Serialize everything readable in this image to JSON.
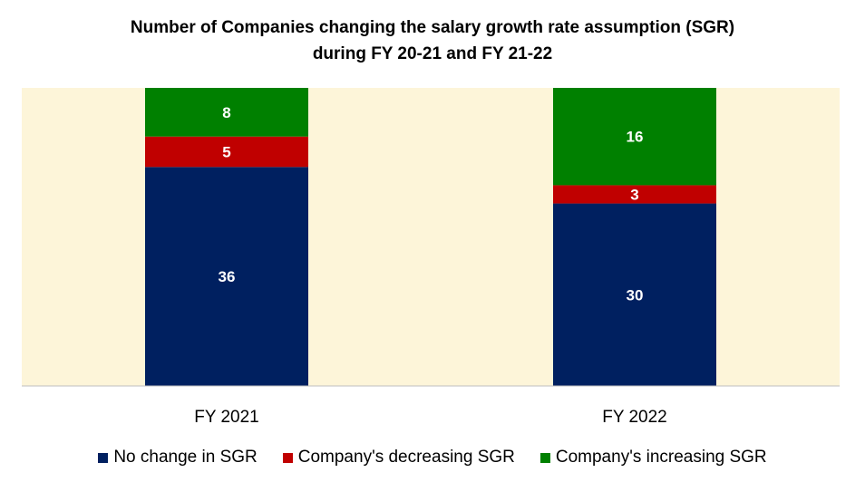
{
  "chart_data": {
    "type": "bar",
    "stacked": true,
    "title": [
      "Number of Companies changing the salary growth rate assumption (SGR)",
      "during FY 20-21 and FY 21-22"
    ],
    "categories": [
      "FY 2021",
      "FY 2022"
    ],
    "series": [
      {
        "name": "No change in SGR",
        "color": "#002060",
        "values": [
          36,
          30
        ]
      },
      {
        "name": "Company's decreasing SGR",
        "color": "#C00000",
        "values": [
          5,
          3
        ]
      },
      {
        "name": "Company's increasing SGR",
        "color": "#008000",
        "values": [
          8,
          16
        ]
      }
    ],
    "ylim": [
      0,
      49
    ],
    "grid": false,
    "legend_position": "bottom",
    "plot_background": "#FDF5D9",
    "label_color": "#FFFFFF"
  }
}
